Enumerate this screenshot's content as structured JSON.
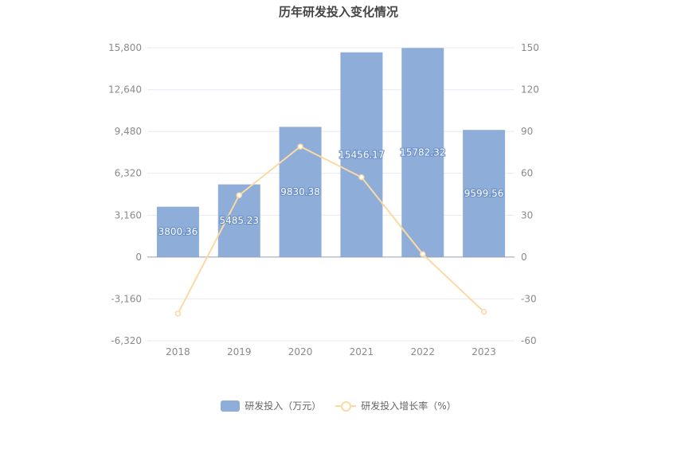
{
  "chart_data": {
    "type": "bar",
    "title": "历年研发投入变化情况",
    "categories": [
      "2018",
      "2019",
      "2020",
      "2021",
      "2022",
      "2023"
    ],
    "series": [
      {
        "name": "研发投入（万元）",
        "type": "bar",
        "axis": "left",
        "values": [
          3800.36,
          5485.23,
          9830.38,
          15456.17,
          15782.32,
          9599.56
        ],
        "labels": [
          "3800.36",
          "5485.23",
          "9830.38",
          "15456.17",
          "15782.32",
          "9599.56"
        ],
        "color": "#8eadd9"
      },
      {
        "name": "研发投入增长率（%）",
        "type": "line",
        "axis": "right",
        "values": [
          -40.5,
          44.3,
          79.2,
          57.2,
          2.1,
          -39.2
        ],
        "color": "#fcd9a4"
      }
    ],
    "y_left": {
      "ylim": [
        -6320,
        15800
      ],
      "ticks": [
        15800,
        12640,
        9480,
        6320,
        3160,
        0,
        -3160,
        -6320
      ],
      "tick_labels": [
        "15,800",
        "12,640",
        "9,480",
        "6,320",
        "3,160",
        "0",
        "-3,160",
        "-6,320"
      ]
    },
    "y_right": {
      "ylim": [
        -60,
        150
      ],
      "ticks": [
        150,
        120,
        90,
        60,
        30,
        0,
        -30,
        -60
      ],
      "tick_labels": [
        "150",
        "120",
        "90",
        "60",
        "30",
        "0",
        "-30",
        "-60"
      ]
    },
    "grid": true,
    "legend_position": "bottom"
  }
}
